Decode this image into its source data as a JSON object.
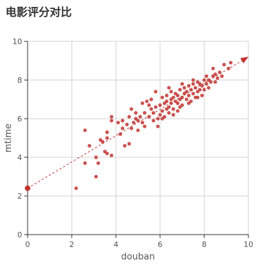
{
  "chart_data": {
    "type": "scatter",
    "title": "电影评分对比",
    "xlabel": "douban",
    "ylabel": "mtime",
    "xlim": [
      0,
      10
    ],
    "ylim": [
      0,
      10
    ],
    "xticks": [
      "0",
      "2",
      "4",
      "6",
      "8",
      "10"
    ],
    "yticks": [
      "0",
      "2",
      "4",
      "6",
      "8",
      "10"
    ],
    "grid": true,
    "point_color": "#c23531",
    "series": [
      {
        "points": [
          [
            2.2,
            2.4
          ],
          [
            2.6,
            3.7
          ],
          [
            2.6,
            5.4
          ],
          [
            2.8,
            4.6
          ],
          [
            3.1,
            3.0
          ],
          [
            3.1,
            4.0
          ],
          [
            3.2,
            3.7
          ],
          [
            3.3,
            4.9
          ],
          [
            3.4,
            4.8
          ],
          [
            3.5,
            4.3
          ],
          [
            3.6,
            4.2
          ],
          [
            3.6,
            5.0
          ],
          [
            3.6,
            5.3
          ],
          [
            3.8,
            4.1
          ],
          [
            3.8,
            5.9
          ],
          [
            3.8,
            6.1
          ],
          [
            4.1,
            5.8
          ],
          [
            4.2,
            5.2
          ],
          [
            4.3,
            5.5
          ],
          [
            4.3,
            5.9
          ],
          [
            4.4,
            4.6
          ],
          [
            4.5,
            5.7
          ],
          [
            4.6,
            4.7
          ],
          [
            4.6,
            6.1
          ],
          [
            4.7,
            5.5
          ],
          [
            4.7,
            6.5
          ],
          [
            4.8,
            5.8
          ],
          [
            4.9,
            6.3
          ],
          [
            5.0,
            5.9
          ],
          [
            5.0,
            5.4
          ],
          [
            5.1,
            6.1
          ],
          [
            5.2,
            6.8
          ],
          [
            5.3,
            5.6
          ],
          [
            5.3,
            6.3
          ],
          [
            5.4,
            6.9
          ],
          [
            5.5,
            6.1
          ],
          [
            5.6,
            6.5
          ],
          [
            5.6,
            7.0
          ],
          [
            5.7,
            5.9
          ],
          [
            5.7,
            6.3
          ],
          [
            5.8,
            6.6
          ],
          [
            5.8,
            7.4
          ],
          [
            5.9,
            6.0
          ],
          [
            5.9,
            5.6
          ],
          [
            6.0,
            6.2
          ],
          [
            6.0,
            6.7
          ],
          [
            6.1,
            6.4
          ],
          [
            6.1,
            7.1
          ],
          [
            6.2,
            6.1
          ],
          [
            6.2,
            6.8
          ],
          [
            6.3,
            6.5
          ],
          [
            6.3,
            6.9
          ],
          [
            6.3,
            7.2
          ],
          [
            6.4,
            6.3
          ],
          [
            6.4,
            6.6
          ],
          [
            6.5,
            6.8
          ],
          [
            6.5,
            7.0
          ],
          [
            6.5,
            7.4
          ],
          [
            6.6,
            6.5
          ],
          [
            6.6,
            7.1
          ],
          [
            6.7,
            6.9
          ],
          [
            6.7,
            7.3
          ],
          [
            6.8,
            6.4
          ],
          [
            6.8,
            6.8
          ],
          [
            6.8,
            7.2
          ],
          [
            6.9,
            7.0
          ],
          [
            6.9,
            7.5
          ],
          [
            7.0,
            6.7
          ],
          [
            7.0,
            7.1
          ],
          [
            7.1,
            7.3
          ],
          [
            7.1,
            7.6
          ],
          [
            7.2,
            7.0
          ],
          [
            7.2,
            7.4
          ],
          [
            7.3,
            7.2
          ],
          [
            7.3,
            7.7
          ],
          [
            7.4,
            6.9
          ],
          [
            7.4,
            7.5
          ],
          [
            7.5,
            7.3
          ],
          [
            7.5,
            7.8
          ],
          [
            7.6,
            7.1
          ],
          [
            7.6,
            7.6
          ],
          [
            7.7,
            7.4
          ],
          [
            7.7,
            7.9
          ],
          [
            7.8,
            7.5
          ],
          [
            7.8,
            7.8
          ],
          [
            7.9,
            7.2
          ],
          [
            7.9,
            7.7
          ],
          [
            8.0,
            7.5
          ],
          [
            8.0,
            8.0
          ],
          [
            8.1,
            7.8
          ],
          [
            8.1,
            8.2
          ],
          [
            8.2,
            7.6
          ],
          [
            8.2,
            8.0
          ],
          [
            8.3,
            7.9
          ],
          [
            8.4,
            8.2
          ],
          [
            8.5,
            7.9
          ],
          [
            8.5,
            8.3
          ],
          [
            8.6,
            8.1
          ],
          [
            8.7,
            8.4
          ],
          [
            8.8,
            8.2
          ],
          [
            8.9,
            8.8
          ],
          [
            9.1,
            8.6
          ],
          [
            9.2,
            8.9
          ],
          [
            5.5,
            6.7
          ],
          [
            6.1,
            6.0
          ],
          [
            6.6,
            6.2
          ],
          [
            6.9,
            6.6
          ],
          [
            7.3,
            6.8
          ],
          [
            7.7,
            7.1
          ],
          [
            8.4,
            8.6
          ],
          [
            4.9,
            6.0
          ],
          [
            5.2,
            5.8
          ],
          [
            6.4,
            7.6
          ],
          [
            7.0,
            7.8
          ],
          [
            7.5,
            8.0
          ]
        ]
      }
    ],
    "trend_line": {
      "start": [
        0,
        2.4
      ],
      "end": [
        10,
        9.2
      ]
    }
  }
}
